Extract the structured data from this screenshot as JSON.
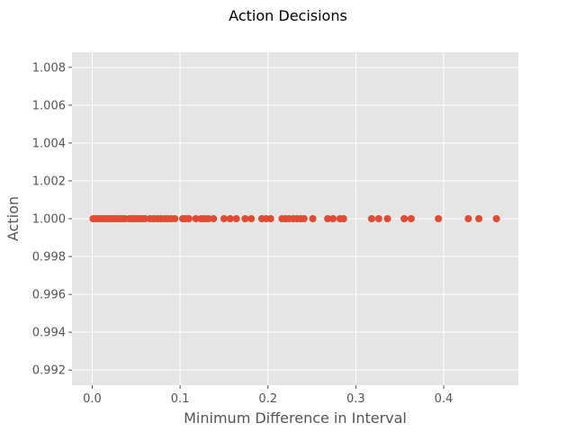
{
  "chart_data": {
    "type": "scatter",
    "title": "Action Decisions",
    "xlabel": "Minimum Difference in Interval",
    "ylabel": "Action",
    "xlim": [
      -0.023,
      0.485
    ],
    "ylim": [
      0.9912,
      1.0088
    ],
    "xticks": [
      0.0,
      0.1,
      0.2,
      0.3,
      0.4
    ],
    "xtick_labels": [
      "0.0",
      "0.1",
      "0.2",
      "0.3",
      "0.4"
    ],
    "yticks": [
      0.992,
      0.994,
      0.996,
      0.998,
      1.0,
      1.002,
      1.004,
      1.006,
      1.008
    ],
    "ytick_labels": [
      "0.992",
      "0.994",
      "0.996",
      "0.998",
      "1.000",
      "1.002",
      "1.004",
      "1.006",
      "1.008"
    ],
    "grid": true,
    "background": "#e5e5e5",
    "marker_color": "#e24a33",
    "points": {
      "x": [
        0.001,
        0.004,
        0.007,
        0.01,
        0.013,
        0.016,
        0.019,
        0.022,
        0.025,
        0.028,
        0.031,
        0.034,
        0.037,
        0.042,
        0.045,
        0.048,
        0.051,
        0.054,
        0.057,
        0.06,
        0.066,
        0.07,
        0.074,
        0.078,
        0.082,
        0.086,
        0.09,
        0.094,
        0.103,
        0.106,
        0.11,
        0.118,
        0.124,
        0.128,
        0.132,
        0.138,
        0.15,
        0.157,
        0.164,
        0.174,
        0.181,
        0.193,
        0.198,
        0.203,
        0.216,
        0.22,
        0.224,
        0.229,
        0.233,
        0.237,
        0.241,
        0.251,
        0.268,
        0.274,
        0.282,
        0.286,
        0.318,
        0.326,
        0.336,
        0.355,
        0.363,
        0.394,
        0.428,
        0.44,
        0.46
      ],
      "y": [
        1.0,
        1.0,
        1.0,
        1.0,
        1.0,
        1.0,
        1.0,
        1.0,
        1.0,
        1.0,
        1.0,
        1.0,
        1.0,
        1.0,
        1.0,
        1.0,
        1.0,
        1.0,
        1.0,
        1.0,
        1.0,
        1.0,
        1.0,
        1.0,
        1.0,
        1.0,
        1.0,
        1.0,
        1.0,
        1.0,
        1.0,
        1.0,
        1.0,
        1.0,
        1.0,
        1.0,
        1.0,
        1.0,
        1.0,
        1.0,
        1.0,
        1.0,
        1.0,
        1.0,
        1.0,
        1.0,
        1.0,
        1.0,
        1.0,
        1.0,
        1.0,
        1.0,
        1.0,
        1.0,
        1.0,
        1.0,
        1.0,
        1.0,
        1.0,
        1.0,
        1.0,
        1.0,
        1.0,
        1.0,
        1.0
      ]
    }
  }
}
